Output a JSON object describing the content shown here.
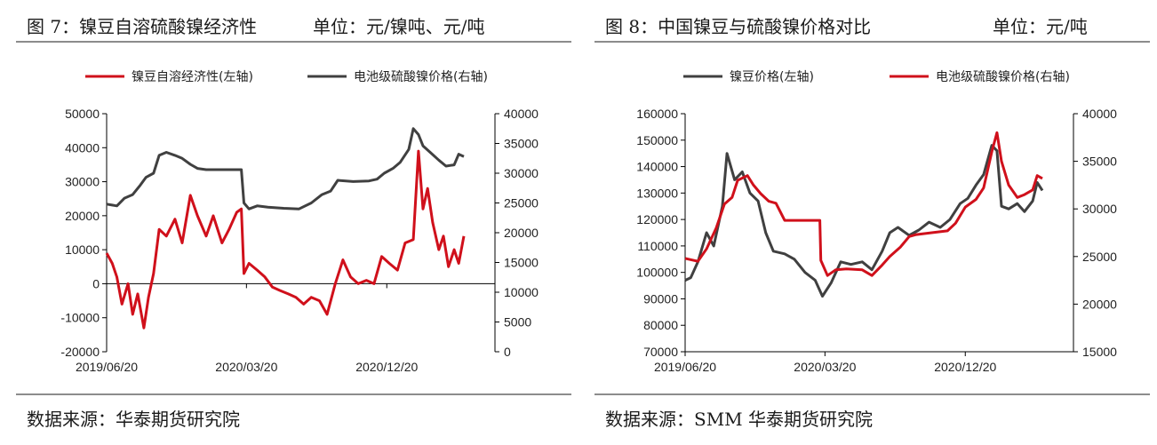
{
  "colors": {
    "red": "#d0101b",
    "dark": "#404040",
    "axis": "#000000",
    "rule": "#8c8c8c"
  },
  "figures": [
    {
      "title": "图 7：镍豆自溶硫酸镍经济性",
      "unit": "单位：元/镍吨、元/吨",
      "source": "数据来源：华泰期货研究院"
    },
    {
      "title": "图 8：中国镍豆与硫酸镍价格对比",
      "unit": "单位：元/吨",
      "source": "数据来源：SMM 华泰期货研究院"
    }
  ],
  "chart_data": [
    {
      "type": "line",
      "x_range": [
        "2019/06/20",
        "2021/07/20"
      ],
      "x_ticks": [
        "2019/06/20",
        "2020/03/20",
        "2020/12/20"
      ],
      "y_left": {
        "min": -20000,
        "max": 50000,
        "ticks": [
          -20000,
          -10000,
          0,
          10000,
          20000,
          30000,
          40000,
          50000
        ]
      },
      "y_right": {
        "min": 0,
        "max": 40000,
        "ticks": [
          0,
          5000,
          10000,
          15000,
          20000,
          25000,
          30000,
          35000,
          40000
        ]
      },
      "legend_position": "top",
      "series": [
        {
          "name": "镍豆自溶经济性(左轴)",
          "axis": "left",
          "color": "#d0101b",
          "points": [
            [
              "2019/06/20",
              9000
            ],
            [
              "2019/07/01",
              6000
            ],
            [
              "2019/07/10",
              2000
            ],
            [
              "2019/07/20",
              -6000
            ],
            [
              "2019/08/01",
              0
            ],
            [
              "2019/08/10",
              -9000
            ],
            [
              "2019/08/20",
              -3000
            ],
            [
              "2019/09/01",
              -13000
            ],
            [
              "2019/09/10",
              -4000
            ],
            [
              "2019/09/20",
              3000
            ],
            [
              "2019/10/01",
              16000
            ],
            [
              "2019/10/15",
              14000
            ],
            [
              "2019/11/01",
              19000
            ],
            [
              "2019/11/15",
              12000
            ],
            [
              "2019/12/01",
              26000
            ],
            [
              "2019/12/15",
              20000
            ],
            [
              "2020/01/01",
              14000
            ],
            [
              "2020/01/15",
              20000
            ],
            [
              "2020/02/01",
              12000
            ],
            [
              "2020/02/15",
              16000
            ],
            [
              "2020/03/01",
              21000
            ],
            [
              "2020/03/10",
              22000
            ],
            [
              "2020/03/15",
              3000
            ],
            [
              "2020/03/25",
              6000
            ],
            [
              "2020/04/10",
              4000
            ],
            [
              "2020/04/25",
              2000
            ],
            [
              "2020/05/10",
              -1000
            ],
            [
              "2020/05/25",
              -2000
            ],
            [
              "2020/06/10",
              -3000
            ],
            [
              "2020/06/25",
              -4000
            ],
            [
              "2020/07/10",
              -6000
            ],
            [
              "2020/07/25",
              -4000
            ],
            [
              "2020/08/10",
              -5000
            ],
            [
              "2020/08/25",
              -9000
            ],
            [
              "2020/09/10",
              0
            ],
            [
              "2020/09/25",
              7000
            ],
            [
              "2020/10/10",
              2000
            ],
            [
              "2020/10/25",
              0
            ],
            [
              "2020/11/10",
              1000
            ],
            [
              "2020/11/25",
              0
            ],
            [
              "2020/12/10",
              8000
            ],
            [
              "2020/12/25",
              6000
            ],
            [
              "2021/01/10",
              4000
            ],
            [
              "2021/01/25",
              12000
            ],
            [
              "2021/02/10",
              13000
            ],
            [
              "2021/02/20",
              39000
            ],
            [
              "2021/03/01",
              22000
            ],
            [
              "2021/03/10",
              28000
            ],
            [
              "2021/03/20",
              18000
            ],
            [
              "2021/04/01",
              10000
            ],
            [
              "2021/04/10",
              14000
            ],
            [
              "2021/04/20",
              5000
            ],
            [
              "2021/05/01",
              10000
            ],
            [
              "2021/05/10",
              6000
            ],
            [
              "2021/05/20",
              14000
            ]
          ]
        },
        {
          "name": "电池级硫酸镍价格(右轴)",
          "axis": "right",
          "color": "#404040",
          "points": [
            [
              "2019/06/20",
              24800
            ],
            [
              "2019/07/10",
              24500
            ],
            [
              "2019/07/25",
              25800
            ],
            [
              "2019/08/10",
              26400
            ],
            [
              "2019/08/25",
              28000
            ],
            [
              "2019/09/05",
              29300
            ],
            [
              "2019/09/20",
              30000
            ],
            [
              "2019/10/01",
              33000
            ],
            [
              "2019/10/15",
              33500
            ],
            [
              "2019/11/01",
              33000
            ],
            [
              "2019/11/15",
              32500
            ],
            [
              "2019/12/01",
              31500
            ],
            [
              "2019/12/15",
              30800
            ],
            [
              "2020/01/01",
              30600
            ],
            [
              "2020/03/01",
              30600
            ],
            [
              "2020/03/10",
              30600
            ],
            [
              "2020/03/15",
              25000
            ],
            [
              "2020/03/25",
              24000
            ],
            [
              "2020/04/10",
              24500
            ],
            [
              "2020/05/01",
              24300
            ],
            [
              "2020/06/01",
              24100
            ],
            [
              "2020/07/01",
              24000
            ],
            [
              "2020/07/25",
              25000
            ],
            [
              "2020/08/15",
              26400
            ],
            [
              "2020/09/01",
              27000
            ],
            [
              "2020/09/15",
              28800
            ],
            [
              "2020/10/15",
              28600
            ],
            [
              "2020/11/15",
              28700
            ],
            [
              "2020/12/01",
              29000
            ],
            [
              "2020/12/15",
              30000
            ],
            [
              "2021/01/01",
              30800
            ],
            [
              "2021/01/15",
              31800
            ],
            [
              "2021/02/01",
              34000
            ],
            [
              "2021/02/10",
              37500
            ],
            [
              "2021/02/20",
              36500
            ],
            [
              "2021/03/01",
              34600
            ],
            [
              "2021/03/15",
              33500
            ],
            [
              "2021/04/01",
              32200
            ],
            [
              "2021/04/15",
              31200
            ],
            [
              "2021/05/01",
              31400
            ],
            [
              "2021/05/10",
              33200
            ],
            [
              "2021/05/20",
              32800
            ]
          ]
        }
      ]
    },
    {
      "type": "line",
      "x_range": [
        "2019/06/20",
        "2021/07/20"
      ],
      "x_ticks": [
        "2019/06/20",
        "2020/03/20",
        "2020/12/20"
      ],
      "y_left": {
        "min": 70000,
        "max": 160000,
        "ticks": [
          70000,
          80000,
          90000,
          100000,
          110000,
          120000,
          130000,
          140000,
          150000,
          160000
        ]
      },
      "y_right": {
        "min": 15000,
        "max": 40000,
        "ticks": [
          15000,
          20000,
          25000,
          30000,
          35000,
          40000
        ]
      },
      "legend_position": "top",
      "series": [
        {
          "name": "镍豆价格(左轴)",
          "axis": "left",
          "color": "#404040",
          "points": [
            [
              "2019/06/20",
              97000
            ],
            [
              "2019/07/01",
              98000
            ],
            [
              "2019/07/15",
              104000
            ],
            [
              "2019/08/01",
              115000
            ],
            [
              "2019/08/15",
              110000
            ],
            [
              "2019/09/01",
              125000
            ],
            [
              "2019/09/10",
              145000
            ],
            [
              "2019/09/25",
              135000
            ],
            [
              "2019/10/10",
              138000
            ],
            [
              "2019/10/25",
              130000
            ],
            [
              "2019/11/10",
              127000
            ],
            [
              "2019/11/25",
              115000
            ],
            [
              "2019/12/10",
              108000
            ],
            [
              "2020/01/01",
              107000
            ],
            [
              "2020/01/20",
              105000
            ],
            [
              "2020/02/10",
              100000
            ],
            [
              "2020/03/01",
              97000
            ],
            [
              "2020/03/15",
              91000
            ],
            [
              "2020/04/01",
              96000
            ],
            [
              "2020/04/20",
              104000
            ],
            [
              "2020/05/10",
              103000
            ],
            [
              "2020/06/01",
              104000
            ],
            [
              "2020/06/20",
              101000
            ],
            [
              "2020/07/10",
              108000
            ],
            [
              "2020/07/25",
              115000
            ],
            [
              "2020/08/10",
              117000
            ],
            [
              "2020/09/01",
              114000
            ],
            [
              "2020/09/20",
              116000
            ],
            [
              "2020/10/10",
              119000
            ],
            [
              "2020/11/01",
              117000
            ],
            [
              "2020/11/20",
              120000
            ],
            [
              "2020/12/10",
              126000
            ],
            [
              "2020/12/25",
              128000
            ],
            [
              "2021/01/10",
              133000
            ],
            [
              "2021/01/25",
              137000
            ],
            [
              "2021/02/10",
              148000
            ],
            [
              "2021/02/20",
              146000
            ],
            [
              "2021/03/01",
              125000
            ],
            [
              "2021/03/15",
              124000
            ],
            [
              "2021/04/01",
              126000
            ],
            [
              "2021/04/15",
              123000
            ],
            [
              "2021/05/01",
              127000
            ],
            [
              "2021/05/10",
              134000
            ],
            [
              "2021/05/20",
              131000
            ]
          ]
        },
        {
          "name": "电池级硫酸镍价格(右轴)",
          "axis": "right",
          "color": "#d0101b",
          "points": [
            [
              "2019/06/20",
              24800
            ],
            [
              "2019/07/15",
              24500
            ],
            [
              "2019/08/01",
              25800
            ],
            [
              "2019/08/20",
              28000
            ],
            [
              "2019/09/05",
              30500
            ],
            [
              "2019/09/20",
              31200
            ],
            [
              "2019/10/01",
              33000
            ],
            [
              "2019/10/20",
              33500
            ],
            [
              "2019/11/01",
              32500
            ],
            [
              "2019/11/15",
              31600
            ],
            [
              "2019/12/01",
              30800
            ],
            [
              "2019/12/15",
              30600
            ],
            [
              "2020/01/01",
              28800
            ],
            [
              "2020/03/10",
              28800
            ],
            [
              "2020/03/12",
              24600
            ],
            [
              "2020/03/25",
              23000
            ],
            [
              "2020/04/10",
              23600
            ],
            [
              "2020/05/01",
              23700
            ],
            [
              "2020/06/01",
              23600
            ],
            [
              "2020/06/20",
              23000
            ],
            [
              "2020/07/10",
              24100
            ],
            [
              "2020/07/25",
              25000
            ],
            [
              "2020/08/15",
              26000
            ],
            [
              "2020/09/01",
              27100
            ],
            [
              "2020/09/15",
              27300
            ],
            [
              "2020/10/15",
              27500
            ],
            [
              "2020/11/15",
              27700
            ],
            [
              "2020/12/01",
              28500
            ],
            [
              "2020/12/20",
              30200
            ],
            [
              "2021/01/10",
              31000
            ],
            [
              "2021/01/25",
              32200
            ],
            [
              "2021/02/10",
              36000
            ],
            [
              "2021/02/20",
              38000
            ],
            [
              "2021/03/01",
              35000
            ],
            [
              "2021/03/15",
              32500
            ],
            [
              "2021/04/01",
              31200
            ],
            [
              "2021/04/15",
              31500
            ],
            [
              "2021/05/01",
              32000
            ],
            [
              "2021/05/10",
              33500
            ],
            [
              "2021/05/20",
              33200
            ]
          ]
        }
      ]
    }
  ]
}
